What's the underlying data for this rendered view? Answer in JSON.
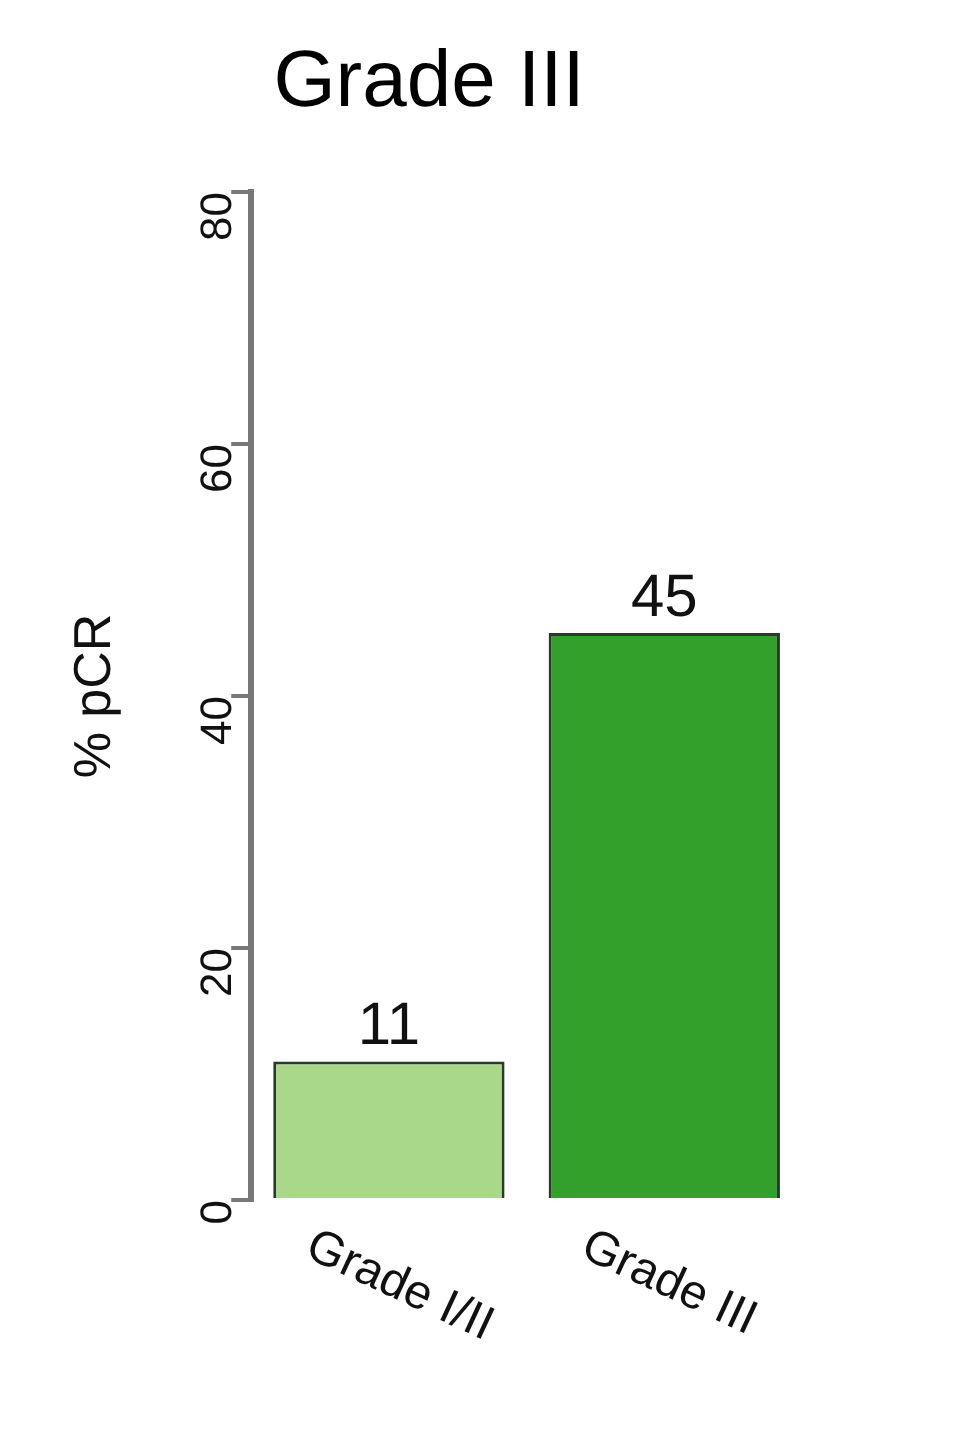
{
  "chart_data": {
    "type": "bar",
    "title": "Grade III",
    "ylabel": "% pCR",
    "categories": [
      "Grade I/II",
      "Grade III"
    ],
    "values": [
      11,
      45
    ],
    "colors": [
      "#a8d888",
      "#33a02c"
    ],
    "ylim": [
      0,
      80
    ],
    "yticks": [
      0,
      20,
      40,
      60,
      80
    ],
    "data_labels": true
  }
}
